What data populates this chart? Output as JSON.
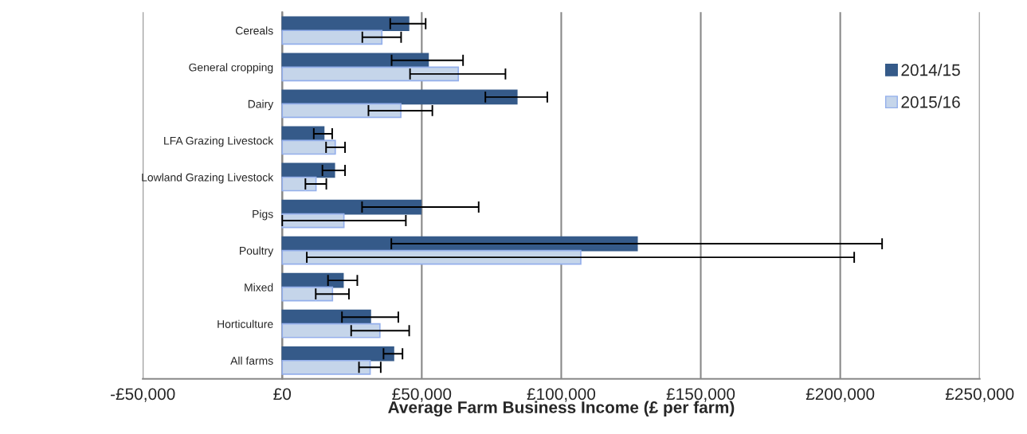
{
  "chart_data": {
    "type": "bar",
    "orientation": "horizontal",
    "xlabel": "Average Farm Business Income (£ per farm)",
    "categories": [
      "Cereals",
      "General cropping",
      "Dairy",
      "LFA Grazing Livestock",
      "Lowland Grazing Livestock",
      "Pigs",
      "Poultry",
      "Mixed",
      "Horticulture",
      "All farms"
    ],
    "series": [
      {
        "name": "2014/15",
        "color": "#355a89",
        "values": [
          45300,
          52300,
          84100,
          14900,
          18700,
          49700,
          127200,
          21800,
          31600,
          39900
        ],
        "errors": [
          [
            38700,
            51400
          ],
          [
            39200,
            64800
          ],
          [
            72800,
            95000
          ],
          [
            11300,
            17900
          ],
          [
            14400,
            22500
          ],
          [
            28600,
            70400
          ],
          [
            39100,
            215000
          ],
          [
            16400,
            26900
          ],
          [
            21400,
            41600
          ],
          [
            36300,
            43100
          ]
        ]
      },
      {
        "name": "2015/16",
        "color": "#c5d5ea",
        "values": [
          35700,
          63100,
          42500,
          19000,
          12100,
          22100,
          107000,
          18000,
          35000,
          31500
        ],
        "errors": [
          [
            28700,
            42600
          ],
          [
            45800,
            80000
          ],
          [
            30900,
            53800
          ],
          [
            15700,
            22500
          ],
          [
            8300,
            15800
          ],
          [
            0,
            44300
          ],
          [
            8800,
            205000
          ],
          [
            12000,
            23900
          ],
          [
            24700,
            45500
          ],
          [
            27500,
            35300
          ]
        ]
      }
    ],
    "xlim": [
      -50000,
      250000
    ],
    "xticks": [
      {
        "value": -50000,
        "label": "-£50,000"
      },
      {
        "value": 0,
        "label": "£0"
      },
      {
        "value": 50000,
        "label": "£50,000"
      },
      {
        "value": 100000,
        "label": "£100,000"
      },
      {
        "value": 150000,
        "label": "£150,000"
      },
      {
        "value": 200000,
        "label": "£200,000"
      },
      {
        "value": 250000,
        "label": "£250,000"
      }
    ],
    "grid": "x",
    "legend": "top right"
  }
}
